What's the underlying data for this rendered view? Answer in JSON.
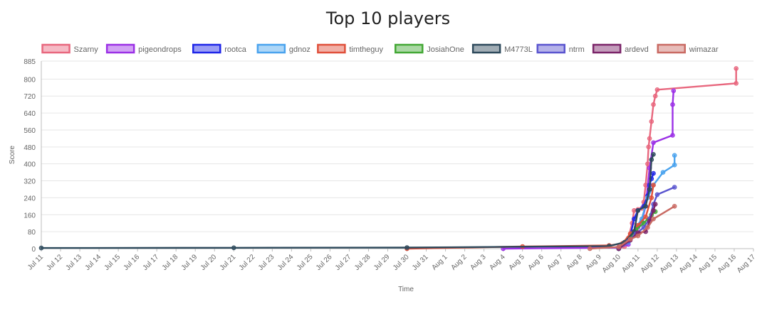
{
  "chart_data": {
    "type": "line",
    "title": "Top 10 players",
    "xlabel": "Time",
    "ylabel": "Score",
    "ylim": [
      0,
      885
    ],
    "y_ticks": [
      0,
      80,
      160,
      240,
      320,
      400,
      480,
      560,
      640,
      720,
      800,
      885
    ],
    "x_ticks": [
      "Jul 11",
      "Jul 12",
      "Jul 13",
      "Jul 14",
      "Jul 15",
      "Jul 16",
      "Jul 17",
      "Jul 18",
      "Jul 19",
      "Jul 20",
      "Jul 21",
      "Jul 22",
      "Jul 23",
      "Jul 24",
      "Jul 25",
      "Jul 26",
      "Jul 27",
      "Jul 28",
      "Jul 29",
      "Jul 30",
      "Jul 31",
      "Aug 1",
      "Aug 2",
      "Aug 3",
      "Aug 4",
      "Aug 5",
      "Aug 6",
      "Aug 7",
      "Aug 8",
      "Aug 9",
      "Aug 10",
      "Aug 11",
      "Aug 12",
      "Aug 13",
      "Aug 14",
      "Aug 15",
      "Aug 16",
      "Aug 17"
    ],
    "x_unit": "days elapsed from the first axis date (Jul 11)",
    "grid": {
      "x": false,
      "y": true
    },
    "legend_position": "top",
    "series": [
      {
        "name": "Szarny",
        "color": "#e8677e",
        "points": [
          [
            30.0,
            0
          ],
          [
            30.3,
            10
          ],
          [
            30.5,
            50
          ],
          [
            30.7,
            120
          ],
          [
            30.8,
            180
          ],
          [
            31.0,
            185
          ],
          [
            31.2,
            190
          ],
          [
            31.3,
            220
          ],
          [
            31.4,
            300
          ],
          [
            31.5,
            400
          ],
          [
            31.55,
            480
          ],
          [
            31.6,
            520
          ],
          [
            31.7,
            600
          ],
          [
            31.8,
            680
          ],
          [
            31.9,
            720
          ],
          [
            32.0,
            750
          ],
          [
            36.1,
            780
          ],
          [
            36.1,
            850
          ]
        ]
      },
      {
        "name": "pigeondrops",
        "color": "#9b30e6",
        "points": [
          [
            24.0,
            0
          ],
          [
            30.0,
            5
          ],
          [
            30.5,
            20
          ],
          [
            30.8,
            60
          ],
          [
            31.0,
            100
          ],
          [
            31.2,
            130
          ],
          [
            31.4,
            200
          ],
          [
            31.6,
            380
          ],
          [
            31.8,
            500
          ],
          [
            32.8,
            535
          ],
          [
            32.8,
            680
          ],
          [
            32.85,
            745
          ]
        ]
      },
      {
        "name": "rootca",
        "color": "#1f26e8",
        "points": [
          [
            30.0,
            0
          ],
          [
            30.6,
            60
          ],
          [
            30.8,
            140
          ],
          [
            31.0,
            180
          ],
          [
            31.3,
            200
          ],
          [
            31.5,
            250
          ],
          [
            31.6,
            300
          ],
          [
            31.7,
            330
          ],
          [
            31.8,
            355
          ]
        ]
      },
      {
        "name": "gdnoz",
        "color": "#4aa3ee",
        "points": [
          [
            30.0,
            0
          ],
          [
            30.5,
            30
          ],
          [
            30.9,
            100
          ],
          [
            31.2,
            140
          ],
          [
            31.5,
            240
          ],
          [
            31.8,
            300
          ],
          [
            32.3,
            360
          ],
          [
            32.9,
            395
          ],
          [
            32.9,
            440
          ]
        ]
      },
      {
        "name": "timtheguy",
        "color": "#e0503b",
        "points": [
          [
            19.0,
            0
          ],
          [
            25.0,
            10
          ],
          [
            29.5,
            15
          ],
          [
            30.2,
            25
          ],
          [
            30.6,
            70
          ],
          [
            31.0,
            110
          ],
          [
            31.4,
            150
          ],
          [
            31.7,
            240
          ],
          [
            31.8,
            300
          ]
        ]
      },
      {
        "name": "JosiahOne",
        "color": "#43a835",
        "points": [
          [
            30.0,
            0
          ],
          [
            30.5,
            40
          ],
          [
            30.9,
            90
          ],
          [
            31.3,
            120
          ],
          [
            31.7,
            160
          ],
          [
            31.9,
            175
          ]
        ]
      },
      {
        "name": "M4773L",
        "color": "#2e4a5c",
        "points": [
          [
            0.0,
            3
          ],
          [
            10.0,
            4
          ],
          [
            19.0,
            5
          ],
          [
            29.5,
            12
          ],
          [
            30.3,
            30
          ],
          [
            30.8,
            80
          ],
          [
            31.0,
            180
          ],
          [
            31.4,
            200
          ],
          [
            31.6,
            280
          ],
          [
            31.7,
            420
          ],
          [
            31.8,
            445
          ]
        ]
      },
      {
        "name": "ntrm",
        "color": "#5a55cf",
        "points": [
          [
            30.0,
            0
          ],
          [
            30.5,
            35
          ],
          [
            30.9,
            70
          ],
          [
            31.3,
            100
          ],
          [
            31.6,
            140
          ],
          [
            31.8,
            210
          ],
          [
            32.0,
            255
          ],
          [
            32.9,
            290
          ]
        ]
      },
      {
        "name": "ardevd",
        "color": "#7b2469",
        "points": [
          [
            30.0,
            0
          ],
          [
            30.6,
            40
          ],
          [
            31.0,
            75
          ],
          [
            31.4,
            80
          ],
          [
            31.6,
            130
          ],
          [
            31.8,
            180
          ],
          [
            31.9,
            210
          ]
        ]
      },
      {
        "name": "wimazar",
        "color": "#c96a63",
        "points": [
          [
            28.5,
            0
          ],
          [
            30.0,
            8
          ],
          [
            30.6,
            45
          ],
          [
            31.0,
            60
          ],
          [
            31.5,
            100
          ],
          [
            31.8,
            140
          ],
          [
            32.9,
            200
          ]
        ]
      }
    ]
  }
}
